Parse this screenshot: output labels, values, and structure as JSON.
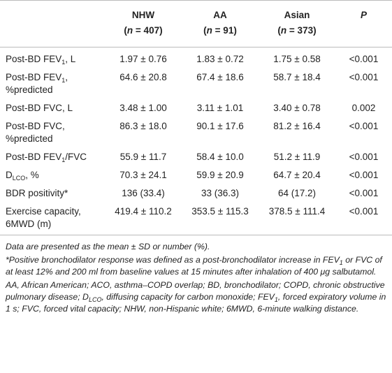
{
  "table": {
    "header": [
      {
        "name": "NHW",
        "count": [
          "(",
          "n",
          " = 407)"
        ]
      },
      {
        "name": "AA",
        "count": [
          "(",
          "n",
          " = 91)"
        ]
      },
      {
        "name": "Asian",
        "count": [
          "(",
          "n",
          " = 373)"
        ]
      },
      {
        "name": "P"
      }
    ],
    "rows": [
      {
        "label": [
          "Post-BD FEV",
          "1",
          ", L"
        ],
        "cells": [
          "1.97 ± 0.76",
          "1.83 ± 0.72",
          "1.75 ± 0.58",
          "<0.001"
        ]
      },
      {
        "label": [
          "Post-BD FEV",
          "1",
          ", %predicted"
        ],
        "cells": [
          "64.6 ± 20.8",
          "67.4 ± 18.6",
          "58.7 ± 18.4",
          "<0.001"
        ]
      },
      {
        "label": [
          "Post-BD FVC, L"
        ],
        "cells": [
          "3.48 ± 1.00",
          "3.11 ± 1.01",
          "3.40 ± 0.78",
          "0.002"
        ]
      },
      {
        "label": [
          "Post-BD FVC, %predicted"
        ],
        "cells": [
          "86.3 ± 18.0",
          "90.1 ± 17.6",
          "81.2 ± 16.4",
          "<0.001"
        ]
      },
      {
        "label": [
          "Post-BD FEV",
          "1",
          "/FVC"
        ],
        "cells": [
          "55.9 ± 11.7",
          "58.4 ± 10.0",
          "51.2 ± 11.9",
          "<0.001"
        ]
      },
      {
        "label": [
          "D",
          "LCO",
          ", %"
        ],
        "cells": [
          "70.3 ± 24.1",
          "59.9 ± 20.9",
          "64.7 ± 20.4",
          "<0.001"
        ]
      },
      {
        "label": [
          "BDR positivity*"
        ],
        "cells": [
          "136 (33.4)",
          "33 (36.3)",
          "64 (17.2)",
          "<0.001"
        ]
      },
      {
        "label": [
          "Exercise capacity, 6MWD (m)"
        ],
        "cells": [
          "419.4 ± 110.2",
          "353.5 ± 115.3",
          "378.5 ± 111.4",
          "<0.001"
        ]
      }
    ]
  },
  "footnotes": [
    [
      "Data are presented as the mean ± SD or number (%)."
    ],
    [
      "*Positive bronchodilator response was defined as a post-bronchodilator increase in FEV",
      "1",
      " or FVC of at least 12% and 200 ml from baseline values at 15 minutes after inhalation of 400 μg salbutamol."
    ],
    [
      "AA, African American; ACO, asthma–COPD overlap; BD, bronchodilator; COPD, chronic obstructive pulmonary disease; D",
      "LCO",
      ", diffusing capacity for carbon monoxide; FEV",
      "1",
      ", forced expiratory volume in 1 s; FVC, forced vital capacity; NHW, non-Hispanic white; 6MWD, 6-minute walking distance."
    ]
  ]
}
